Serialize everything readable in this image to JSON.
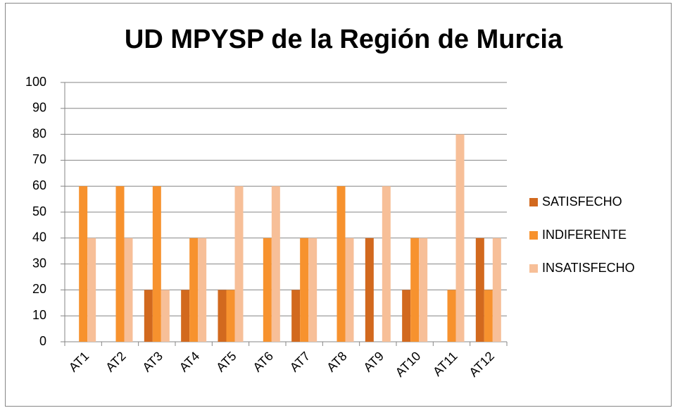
{
  "chart_data": {
    "type": "bar",
    "title": "UD MPYSP de la Región de Murcia",
    "categories": [
      "AT1",
      "AT2",
      "AT3",
      "AT4",
      "AT5",
      "AT6",
      "AT7",
      "AT8",
      "AT9",
      "AT10",
      "AT11",
      "AT12"
    ],
    "series": [
      {
        "name": "SATISFECHO",
        "color": "#d2691e",
        "values": [
          0,
          0,
          20,
          20,
          20,
          0,
          20,
          0,
          40,
          20,
          0,
          40
        ]
      },
      {
        "name": "INDIFERENTE",
        "color": "#f7922e",
        "values": [
          60,
          60,
          60,
          40,
          20,
          40,
          40,
          60,
          0,
          40,
          20,
          20
        ]
      },
      {
        "name": "INSATISFECHO",
        "color": "#f7bf98",
        "values": [
          40,
          40,
          20,
          40,
          60,
          60,
          40,
          40,
          60,
          40,
          80,
          40
        ]
      }
    ],
    "ylim": [
      0,
      100
    ],
    "yticks": [
      0,
      10,
      20,
      30,
      40,
      50,
      60,
      70,
      80,
      90,
      100
    ],
    "grid": true,
    "legend": "right"
  }
}
